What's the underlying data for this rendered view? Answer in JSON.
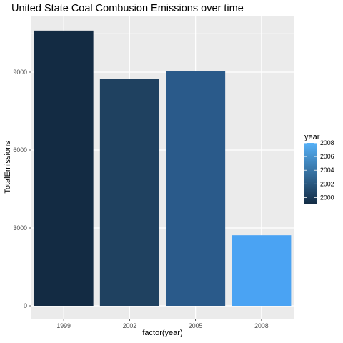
{
  "chart_data": {
    "type": "bar",
    "title": "United State Coal Combusion Emissions over time",
    "xlabel": "factor(year)",
    "ylabel": "TotalEmissions",
    "categories": [
      "1999",
      "2002",
      "2005",
      "2008"
    ],
    "values": [
      10600,
      8750,
      9050,
      2720
    ],
    "ylim": [
      0,
      11000
    ],
    "yticks": [
      0,
      3000,
      6000,
      9000
    ],
    "grid": true,
    "legend": {
      "title": "year",
      "placement": "right",
      "ticks": [
        "2008",
        "2006",
        "2004",
        "2002",
        "2000"
      ],
      "range": [
        1999,
        2008
      ],
      "colors": [
        "#132B43",
        "#56B1F7"
      ]
    },
    "bar_colors": [
      "#132B43",
      "#1F4160",
      "#2A5A8A",
      "#4AA3F3"
    ]
  }
}
